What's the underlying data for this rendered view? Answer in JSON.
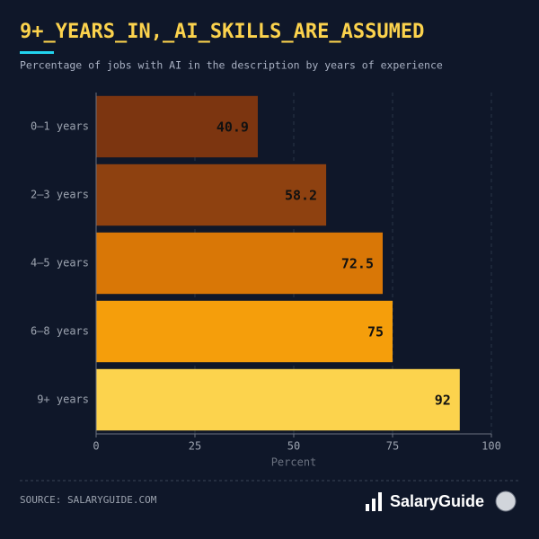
{
  "chart_data": {
    "type": "barh",
    "title": "9+_YEARS_IN,_AI_SKILLS_ARE_ASSUMED",
    "subtitle": "Percentage of jobs with AI in the description by years of experience",
    "categories": [
      "0–1 years",
      "2–3 years",
      "4–5 years",
      "6–8 years",
      "9+ years"
    ],
    "values": [
      40.9,
      58.2,
      72.5,
      75,
      92
    ],
    "colors": [
      "#7c3510",
      "#8e4110",
      "#d97706",
      "#f59e0b",
      "#fcd34d"
    ],
    "xlabel": "Percent",
    "xlim": [
      0,
      100
    ],
    "xticks": [
      0,
      25,
      50,
      75,
      100
    ],
    "grid": true
  },
  "footer": {
    "source": "SOURCE: SALARYGUIDE.COM",
    "brand": "SalaryGuide"
  }
}
